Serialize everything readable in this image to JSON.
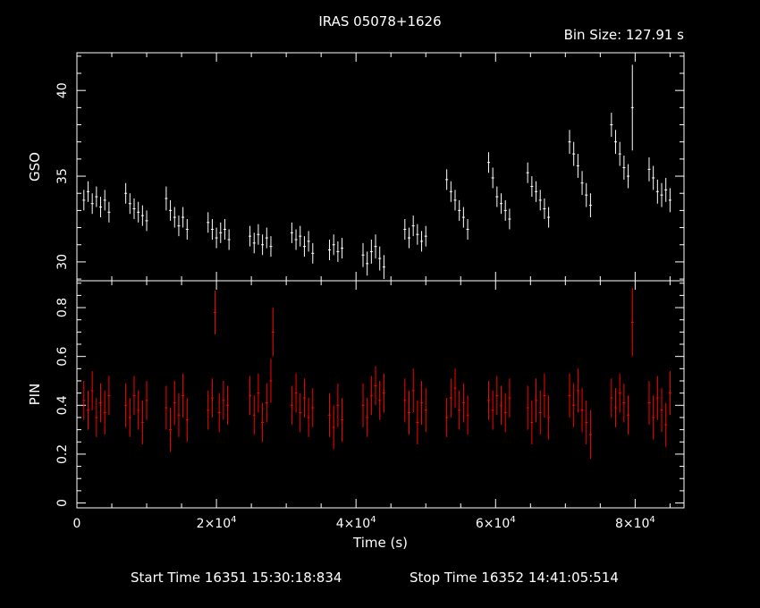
{
  "title": "IRAS 05078+1626",
  "bin_size_label": "Bin Size:  127.91  s",
  "footer": {
    "start": "Start Time 16351 15:30:18:834",
    "stop": "Stop Time 16352 14:41:05:514"
  },
  "colors": {
    "axes": "#ffffff",
    "gso": "#ffffff",
    "pin": "#ff0000",
    "background": "#000000"
  },
  "chart_data": [
    {
      "type": "scatter",
      "panel": "top",
      "ylabel": "GSO",
      "xlim": [
        0,
        87000
      ],
      "ylim": [
        28.9,
        42.2
      ],
      "yticks": [
        30,
        35,
        40
      ],
      "yticklabels": [
        "30",
        "35",
        "40"
      ],
      "series": [
        {
          "error_bars": true,
          "points": [
            [
              1000,
              33.6,
              0.6
            ],
            [
              1600,
              34.1,
              0.6
            ],
            [
              2200,
              33.4,
              0.6
            ],
            [
              2800,
              33.8,
              0.6
            ],
            [
              3400,
              33.2,
              0.6
            ],
            [
              4000,
              33.6,
              0.6
            ],
            [
              4600,
              32.9,
              0.6
            ],
            [
              7000,
              34.0,
              0.6
            ],
            [
              7600,
              33.4,
              0.6
            ],
            [
              8200,
              33.1,
              0.6
            ],
            [
              8800,
              32.9,
              0.6
            ],
            [
              9400,
              32.7,
              0.6
            ],
            [
              10000,
              32.4,
              0.6
            ],
            [
              12800,
              33.7,
              0.7
            ],
            [
              13400,
              33.0,
              0.6
            ],
            [
              14000,
              32.6,
              0.6
            ],
            [
              14600,
              32.1,
              0.6
            ],
            [
              15200,
              32.6,
              0.6
            ],
            [
              15800,
              31.9,
              0.6
            ],
            [
              18800,
              32.3,
              0.6
            ],
            [
              19400,
              31.9,
              0.6
            ],
            [
              20000,
              31.4,
              0.6
            ],
            [
              20600,
              31.7,
              0.6
            ],
            [
              21200,
              31.9,
              0.6
            ],
            [
              21800,
              31.3,
              0.6
            ],
            [
              24800,
              31.5,
              0.6
            ],
            [
              25400,
              31.1,
              0.6
            ],
            [
              26000,
              31.6,
              0.6
            ],
            [
              26600,
              31.0,
              0.6
            ],
            [
              27200,
              31.4,
              0.6
            ],
            [
              27800,
              30.9,
              0.6
            ],
            [
              30800,
              31.7,
              0.6
            ],
            [
              31400,
              31.3,
              0.6
            ],
            [
              32000,
              31.5,
              0.6
            ],
            [
              32600,
              30.9,
              0.6
            ],
            [
              33200,
              31.2,
              0.6
            ],
            [
              33800,
              30.5,
              0.6
            ],
            [
              36200,
              30.7,
              0.6
            ],
            [
              36800,
              31.0,
              0.6
            ],
            [
              37400,
              30.6,
              0.6
            ],
            [
              38000,
              30.8,
              0.6
            ],
            [
              41000,
              30.4,
              0.7
            ],
            [
              41600,
              29.9,
              0.7
            ],
            [
              42200,
              30.6,
              0.7
            ],
            [
              42800,
              30.9,
              0.7
            ],
            [
              43400,
              30.2,
              0.7
            ],
            [
              44000,
              29.7,
              0.7
            ],
            [
              47000,
              31.9,
              0.6
            ],
            [
              47600,
              31.4,
              0.6
            ],
            [
              48200,
              32.1,
              0.6
            ],
            [
              48800,
              31.6,
              0.6
            ],
            [
              49400,
              31.2,
              0.6
            ],
            [
              50000,
              31.5,
              0.6
            ],
            [
              53000,
              34.8,
              0.6
            ],
            [
              53600,
              34.1,
              0.6
            ],
            [
              54200,
              33.6,
              0.6
            ],
            [
              54800,
              33.0,
              0.6
            ],
            [
              55400,
              32.6,
              0.6
            ],
            [
              56000,
              31.9,
              0.6
            ],
            [
              59000,
              35.8,
              0.6
            ],
            [
              59600,
              34.9,
              0.6
            ],
            [
              60200,
              33.8,
              0.6
            ],
            [
              60800,
              33.4,
              0.6
            ],
            [
              61400,
              33.0,
              0.6
            ],
            [
              62000,
              32.5,
              0.6
            ],
            [
              64600,
              35.2,
              0.6
            ],
            [
              65200,
              34.4,
              0.6
            ],
            [
              65800,
              34.1,
              0.6
            ],
            [
              66400,
              33.6,
              0.6
            ],
            [
              67000,
              33.1,
              0.6
            ],
            [
              67600,
              32.6,
              0.6
            ],
            [
              70600,
              37.0,
              0.7
            ],
            [
              71200,
              36.3,
              0.7
            ],
            [
              71800,
              35.6,
              0.7
            ],
            [
              72400,
              34.6,
              0.7
            ],
            [
              73000,
              33.9,
              0.7
            ],
            [
              73600,
              33.3,
              0.7
            ],
            [
              76600,
              38.0,
              0.7
            ],
            [
              77200,
              37.0,
              0.7
            ],
            [
              77800,
              36.3,
              0.7
            ],
            [
              78400,
              35.5,
              0.7
            ],
            [
              79000,
              35.0,
              0.7
            ],
            [
              79600,
              39.0,
              2.5
            ],
            [
              82000,
              35.4,
              0.7
            ],
            [
              82600,
              34.9,
              0.7
            ],
            [
              83200,
              34.1,
              0.7
            ],
            [
              83800,
              33.9,
              0.7
            ],
            [
              84400,
              34.2,
              0.7
            ],
            [
              85000,
              33.6,
              0.7
            ]
          ]
        }
      ]
    },
    {
      "type": "scatter",
      "panel": "bottom",
      "xlabel": "Time (s)",
      "ylabel": "PIN",
      "xlim": [
        0,
        87000
      ],
      "ylim": [
        -0.02,
        0.91
      ],
      "xticks": [
        0,
        20000,
        40000,
        60000,
        80000
      ],
      "xticklabels": [
        {
          "base": "0",
          "exp": ""
        },
        {
          "base": "2×10",
          "exp": "4"
        },
        {
          "base": "4×10",
          "exp": "4"
        },
        {
          "base": "6×10",
          "exp": "4"
        },
        {
          "base": "8×10",
          "exp": "4"
        }
      ],
      "yticks": [
        0,
        0.2,
        0.4,
        0.6,
        0.8
      ],
      "yticklabels": [
        "0",
        "0.2",
        "0.4",
        "0.6",
        "0.8"
      ],
      "series": [
        {
          "error_bars": true,
          "points": [
            [
              1000,
              0.42,
              0.08
            ],
            [
              1600,
              0.38,
              0.08
            ],
            [
              2200,
              0.46,
              0.08
            ],
            [
              2800,
              0.35,
              0.08
            ],
            [
              3400,
              0.41,
              0.08
            ],
            [
              4000,
              0.37,
              0.09
            ],
            [
              4600,
              0.44,
              0.08
            ],
            [
              7000,
              0.4,
              0.09
            ],
            [
              7600,
              0.35,
              0.08
            ],
            [
              8200,
              0.44,
              0.08
            ],
            [
              8800,
              0.38,
              0.08
            ],
            [
              9400,
              0.33,
              0.09
            ],
            [
              10000,
              0.42,
              0.08
            ],
            [
              12800,
              0.39,
              0.09
            ],
            [
              13400,
              0.3,
              0.09
            ],
            [
              14000,
              0.41,
              0.09
            ],
            [
              14600,
              0.36,
              0.09
            ],
            [
              15200,
              0.44,
              0.09
            ],
            [
              15800,
              0.34,
              0.09
            ],
            [
              18800,
              0.38,
              0.08
            ],
            [
              19400,
              0.43,
              0.08
            ],
            [
              19800,
              0.78,
              0.09
            ],
            [
              20400,
              0.37,
              0.08
            ],
            [
              21000,
              0.42,
              0.08
            ],
            [
              21600,
              0.4,
              0.08
            ],
            [
              24800,
              0.44,
              0.08
            ],
            [
              25400,
              0.36,
              0.08
            ],
            [
              26000,
              0.45,
              0.08
            ],
            [
              26600,
              0.33,
              0.08
            ],
            [
              27200,
              0.41,
              0.08
            ],
            [
              27800,
              0.5,
              0.09
            ],
            [
              28100,
              0.7,
              0.1
            ],
            [
              30800,
              0.4,
              0.08
            ],
            [
              31400,
              0.45,
              0.08
            ],
            [
              32000,
              0.37,
              0.08
            ],
            [
              32600,
              0.43,
              0.08
            ],
            [
              33200,
              0.35,
              0.08
            ],
            [
              33800,
              0.39,
              0.08
            ],
            [
              36200,
              0.36,
              0.09
            ],
            [
              36800,
              0.31,
              0.09
            ],
            [
              37400,
              0.4,
              0.09
            ],
            [
              38000,
              0.34,
              0.09
            ],
            [
              41000,
              0.4,
              0.09
            ],
            [
              41600,
              0.35,
              0.08
            ],
            [
              42200,
              0.44,
              0.08
            ],
            [
              42800,
              0.48,
              0.08
            ],
            [
              43400,
              0.42,
              0.08
            ],
            [
              44000,
              0.45,
              0.08
            ],
            [
              47000,
              0.42,
              0.09
            ],
            [
              47600,
              0.37,
              0.09
            ],
            [
              48200,
              0.46,
              0.09
            ],
            [
              48800,
              0.33,
              0.09
            ],
            [
              49400,
              0.41,
              0.09
            ],
            [
              50000,
              0.38,
              0.09
            ],
            [
              53000,
              0.35,
              0.08
            ],
            [
              53600,
              0.43,
              0.08
            ],
            [
              54200,
              0.47,
              0.08
            ],
            [
              54800,
              0.38,
              0.08
            ],
            [
              55400,
              0.41,
              0.08
            ],
            [
              56000,
              0.36,
              0.08
            ],
            [
              59000,
              0.42,
              0.08
            ],
            [
              59600,
              0.38,
              0.08
            ],
            [
              60200,
              0.44,
              0.08
            ],
            [
              60800,
              0.4,
              0.08
            ],
            [
              61400,
              0.37,
              0.08
            ],
            [
              62000,
              0.43,
              0.08
            ],
            [
              64600,
              0.39,
              0.09
            ],
            [
              65200,
              0.33,
              0.09
            ],
            [
              65800,
              0.42,
              0.09
            ],
            [
              66400,
              0.37,
              0.09
            ],
            [
              67000,
              0.44,
              0.09
            ],
            [
              67600,
              0.35,
              0.09
            ],
            [
              70600,
              0.44,
              0.09
            ],
            [
              71200,
              0.4,
              0.09
            ],
            [
              71800,
              0.46,
              0.09
            ],
            [
              72400,
              0.38,
              0.09
            ],
            [
              73000,
              0.33,
              0.09
            ],
            [
              73600,
              0.28,
              0.1
            ],
            [
              76600,
              0.43,
              0.08
            ],
            [
              77200,
              0.39,
              0.08
            ],
            [
              77800,
              0.45,
              0.08
            ],
            [
              78400,
              0.41,
              0.08
            ],
            [
              79000,
              0.36,
              0.08
            ],
            [
              79600,
              0.74,
              0.14
            ],
            [
              82000,
              0.41,
              0.09
            ],
            [
              82600,
              0.35,
              0.09
            ],
            [
              83200,
              0.43,
              0.09
            ],
            [
              83800,
              0.38,
              0.09
            ],
            [
              84400,
              0.32,
              0.09
            ],
            [
              85000,
              0.45,
              0.09
            ]
          ]
        }
      ]
    }
  ]
}
